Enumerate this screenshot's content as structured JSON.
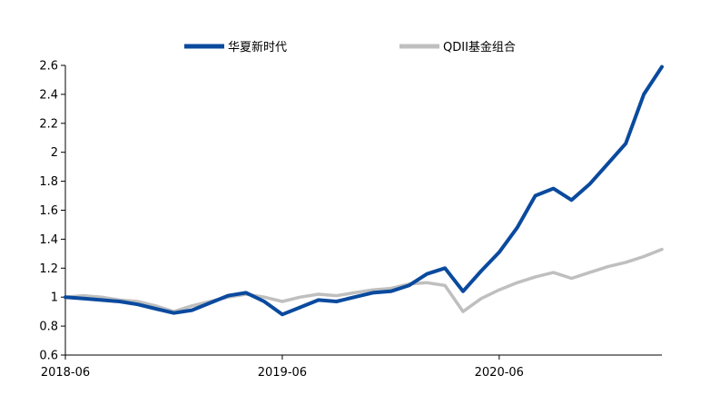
{
  "chart_data": {
    "type": "line",
    "title": "",
    "xlabel": "",
    "ylabel": "",
    "ylim": [
      0.6,
      2.6
    ],
    "yticks": [
      "0.6",
      "0.8",
      "1",
      "1.2",
      "1.4",
      "1.6",
      "1.8",
      "2",
      "2.2",
      "2.4",
      "2.6"
    ],
    "xticks": [
      "2018-06",
      "2019-06",
      "2020-06"
    ],
    "x": [
      "2018-06",
      "2018-07",
      "2018-08",
      "2018-09",
      "2018-10",
      "2018-11",
      "2018-12",
      "2019-01",
      "2019-02",
      "2019-03",
      "2019-04",
      "2019-05",
      "2019-06",
      "2019-07",
      "2019-08",
      "2019-09",
      "2019-10",
      "2019-11",
      "2019-12",
      "2020-01",
      "2020-02",
      "2020-03",
      "2020-04",
      "2020-05",
      "2020-06",
      "2020-07",
      "2020-08",
      "2020-09",
      "2020-10",
      "2020-11",
      "2020-12",
      "2021-01",
      "2021-02",
      "2021-03"
    ],
    "legend_position": "top",
    "grid": false,
    "series": [
      {
        "name": "华夏新时代",
        "color": "#0a4a9e",
        "values": [
          1.0,
          0.99,
          0.98,
          0.97,
          0.95,
          0.92,
          0.89,
          0.91,
          0.96,
          1.01,
          1.03,
          0.97,
          0.88,
          0.93,
          0.98,
          0.97,
          1.0,
          1.03,
          1.04,
          1.08,
          1.16,
          1.2,
          1.04,
          1.18,
          1.31,
          1.48,
          1.7,
          1.75,
          1.67,
          1.78,
          1.92,
          2.06,
          2.4,
          2.59
        ]
      },
      {
        "name": "QDII基金组合",
        "color": "#bfbfbf",
        "values": [
          1.0,
          1.01,
          1.0,
          0.98,
          0.97,
          0.94,
          0.9,
          0.94,
          0.97,
          1.0,
          1.02,
          1.0,
          0.97,
          1.0,
          1.02,
          1.01,
          1.03,
          1.05,
          1.06,
          1.09,
          1.1,
          1.08,
          0.9,
          0.99,
          1.05,
          1.1,
          1.14,
          1.17,
          1.13,
          1.17,
          1.21,
          1.24,
          1.28,
          1.33
        ]
      }
    ]
  }
}
